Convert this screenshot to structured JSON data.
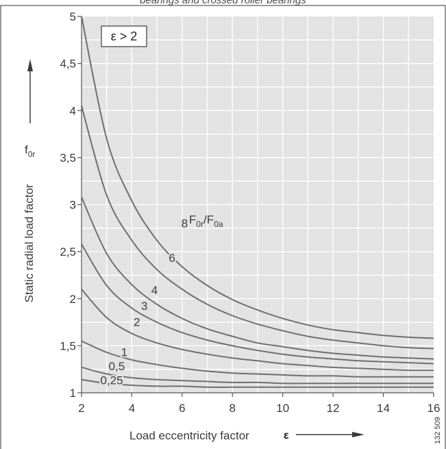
{
  "page": {
    "top_caption": "bearings and crossed roller bearings",
    "figure_number": "132 509"
  },
  "chart_data": {
    "type": "line",
    "x": [
      2,
      3,
      4,
      5,
      6,
      7,
      8,
      9,
      10,
      11,
      12,
      13,
      14,
      15,
      16
    ],
    "xlim": [
      2,
      16
    ],
    "ylim": [
      1,
      5
    ],
    "xticks": [
      "2",
      "4",
      "6",
      "8",
      "10",
      "12",
      "14",
      "16"
    ],
    "yticks": [
      "1",
      "1,5",
      "2",
      "2,5",
      "3",
      "3,5",
      "4",
      "4,5",
      "5"
    ],
    "xlabel": "Load eccentricity factor",
    "xlabel_symbol": "ε",
    "ylabel": "Static radial load factor",
    "ylabel_symbol_main": "f",
    "ylabel_symbol_sub": "0r",
    "condition_box": "ε > 2",
    "curve_parameter_label": {
      "main1": "F",
      "sub1": "0r",
      "sep": "/",
      "main2": "F",
      "sub2": "0a"
    },
    "grid": true,
    "series": [
      {
        "name": "8",
        "values": [
          5.0,
          3.7,
          3.04,
          2.62,
          2.34,
          2.14,
          1.99,
          1.88,
          1.79,
          1.72,
          1.67,
          1.64,
          1.61,
          1.59,
          1.58
        ]
      },
      {
        "name": "6",
        "values": [
          4.05,
          3.1,
          2.62,
          2.31,
          2.1,
          1.94,
          1.82,
          1.73,
          1.66,
          1.6,
          1.56,
          1.53,
          1.5,
          1.48,
          1.47
        ]
      },
      {
        "name": "4",
        "values": [
          3.08,
          2.48,
          2.15,
          1.94,
          1.79,
          1.68,
          1.6,
          1.53,
          1.49,
          1.45,
          1.42,
          1.4,
          1.38,
          1.37,
          1.36
        ]
      },
      {
        "name": "3",
        "values": [
          2.58,
          2.14,
          1.9,
          1.75,
          1.64,
          1.56,
          1.5,
          1.45,
          1.41,
          1.38,
          1.36,
          1.34,
          1.33,
          1.32,
          1.31
        ]
      },
      {
        "name": "2",
        "values": [
          2.1,
          1.8,
          1.63,
          1.53,
          1.46,
          1.41,
          1.37,
          1.34,
          1.31,
          1.29,
          1.27,
          1.26,
          1.25,
          1.24,
          1.24
        ]
      },
      {
        "name": "1",
        "values": [
          1.55,
          1.43,
          1.35,
          1.3,
          1.26,
          1.23,
          1.21,
          1.2,
          1.19,
          1.18,
          1.18,
          1.17,
          1.17,
          1.17,
          1.17
        ]
      },
      {
        "name": "0,5",
        "values": [
          1.27,
          1.2,
          1.16,
          1.14,
          1.13,
          1.12,
          1.11,
          1.11,
          1.1,
          1.1,
          1.1,
          1.1,
          1.1,
          1.1,
          1.1
        ]
      },
      {
        "name": "0,25",
        "values": [
          1.14,
          1.1,
          1.08,
          1.07,
          1.07,
          1.06,
          1.06,
          1.06,
          1.06,
          1.06,
          1.06,
          1.06,
          1.06,
          1.06,
          1.06
        ]
      }
    ],
    "curve_labels": [
      {
        "series": "8",
        "x": 6.1,
        "y": 2.76
      },
      {
        "series": "6",
        "x": 5.6,
        "y": 2.39
      },
      {
        "series": "4",
        "x": 4.9,
        "y": 2.05
      },
      {
        "series": "3",
        "x": 4.5,
        "y": 1.88
      },
      {
        "series": "2",
        "x": 4.2,
        "y": 1.71
      },
      {
        "series": "1",
        "x": 3.7,
        "y": 1.39
      },
      {
        "series": "0,5",
        "x": 3.4,
        "y": 1.24
      },
      {
        "series": "0,25",
        "x": 3.2,
        "y": 1.09
      }
    ],
    "colors": {
      "plot_background": "#e3e3e3",
      "grid": "#ffffff",
      "curve": "#6e6e6e",
      "text": "#3a3a3a",
      "frame": "#555555"
    }
  }
}
